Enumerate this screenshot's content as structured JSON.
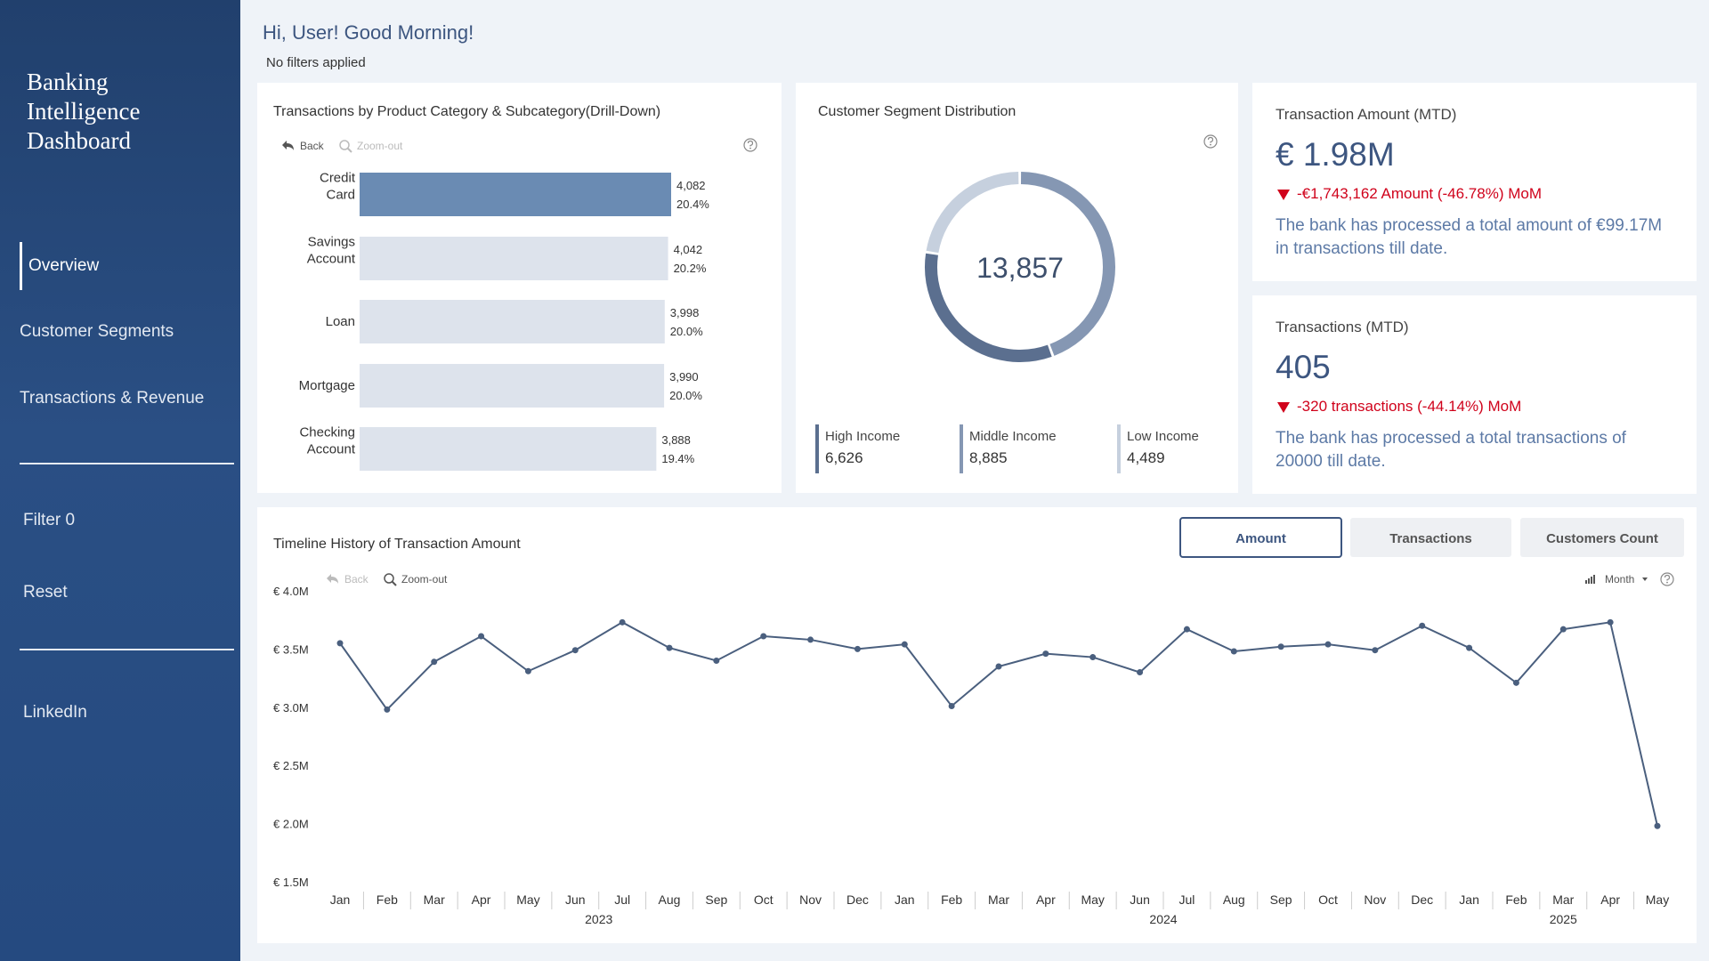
{
  "sidebar": {
    "title": "Banking Intelligence Dashboard",
    "nav": [
      "Overview",
      "Customer Segments",
      "Transactions & Revenue"
    ],
    "filter": "Filter 0",
    "reset": "Reset",
    "link": "LinkedIn"
  },
  "header": {
    "greeting": "Hi, User! Good Morning!",
    "filters": "No filters applied"
  },
  "product_chart": {
    "type": "bar",
    "title": "Transactions by Product Category & Subcategory(Drill-Down)",
    "controls": [
      "Back",
      "Zoom-out"
    ],
    "categories": [
      "Credit Card",
      "Savings Account",
      "Loan",
      "Mortgage",
      "Checking Account"
    ],
    "values": [
      4082,
      4042,
      3998,
      3990,
      3888
    ],
    "value_labels": [
      "4,082",
      "4,042",
      "3,998",
      "3,990",
      "3,888"
    ],
    "shares": [
      20.4,
      20.2,
      20.0,
      20.0,
      19.4
    ],
    "share_labels": [
      "20.4%",
      "20.2%",
      "20.0%",
      "20.0%",
      "19.4%"
    ],
    "colors": [
      "#6a8bb3",
      "#dde3ec",
      "#dde3ec",
      "#dde3ec",
      "#dde3ec"
    ]
  },
  "segment_chart": {
    "type": "donut",
    "title": "Customer Segment Distribution",
    "total": 13857,
    "total_label": "13,857",
    "categories": [
      "High Income",
      "Middle Income",
      "Low Income"
    ],
    "values": [
      6626,
      8885,
      4489
    ],
    "value_labels": [
      "6,626",
      "8,885",
      "4,489"
    ],
    "colors": [
      "#5b6f8f",
      "#8597b3",
      "#c6d0de"
    ]
  },
  "kpis": [
    {
      "title": "Transaction Amount (MTD)",
      "value": "€ 1.98M",
      "change": "-€1,743,162 Amount (-46.78%) MoM",
      "description": "The bank has processed a total amount of €99.17M in transactions till date."
    },
    {
      "title": "Transactions (MTD)",
      "value": "405",
      "change": "-320 transactions (-44.14%) MoM",
      "description": "The bank has processed a total transactions of 20000 till date."
    }
  ],
  "timeline_chart": {
    "type": "line",
    "title": "Timeline History of Transaction Amount",
    "tabs": [
      "Amount",
      "Transactions",
      "Customers Count"
    ],
    "controls": [
      "Back",
      "Zoom-out"
    ],
    "granularity": "Month",
    "categories": [
      "Jan",
      "Feb",
      "Mar",
      "Apr",
      "May",
      "Jun",
      "Jul",
      "Aug",
      "Sep",
      "Oct",
      "Nov",
      "Dec",
      "Jan",
      "Feb",
      "Mar",
      "Apr",
      "May",
      "Jun",
      "Jul",
      "Aug",
      "Sep",
      "Oct",
      "Nov",
      "Dec",
      "Jan",
      "Feb",
      "Mar",
      "Apr",
      "May"
    ],
    "years": [
      "2023",
      "2024",
      "2025"
    ],
    "color": "#4a5f7e",
    "values": [
      3550000,
      2980000,
      3390000,
      3610000,
      3310000,
      3490000,
      3730000,
      3510000,
      3400000,
      3610000,
      3580000,
      3500000,
      3540000,
      3010000,
      3350000,
      3460000,
      3430000,
      3300000,
      3670000,
      3480000,
      3520000,
      3540000,
      3490000,
      3700000,
      3510000,
      3210000,
      3670000,
      3730000,
      1980000
    ],
    "ylim": [
      1500000,
      4000000
    ],
    "yticks": [
      {
        "value": 1500000,
        "label": "€ 1.5M"
      },
      {
        "value": 2000000,
        "label": "€ 2.0M"
      },
      {
        "value": 2500000,
        "label": "€ 2.5M"
      },
      {
        "value": 3000000,
        "label": "€ 3.0M"
      },
      {
        "value": 3500000,
        "label": "€ 3.5M"
      },
      {
        "value": 4000000,
        "label": "€ 4.0M"
      }
    ],
    "grid": false
  }
}
